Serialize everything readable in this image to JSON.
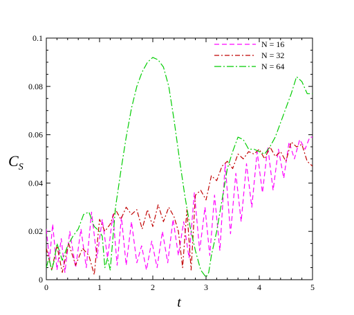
{
  "chart_data": {
    "type": "line",
    "xlabel": "t",
    "ylabel_main": "C",
    "ylabel_sub": "S",
    "xlim": [
      0,
      5
    ],
    "ylim": [
      0,
      0.1
    ],
    "xticks": [
      "0",
      "1",
      "2",
      "3",
      "4",
      "5"
    ],
    "yticks": [
      "0",
      "0.02",
      "0.04",
      "0.06",
      "0.08",
      "0.1"
    ],
    "grid": false,
    "legend_position": "top-right",
    "series": [
      {
        "name": "N = 16",
        "color": "#ff00ff",
        "dash": "7,4",
        "x": [
          0.0,
          0.06,
          0.12,
          0.2,
          0.28,
          0.35,
          0.44,
          0.55,
          0.65,
          0.75,
          0.85,
          0.95,
          1.05,
          1.15,
          1.25,
          1.33,
          1.41,
          1.5,
          1.6,
          1.7,
          1.79,
          1.88,
          1.98,
          2.08,
          2.18,
          2.28,
          2.38,
          2.48,
          2.58,
          2.68,
          2.78,
          2.88,
          2.98,
          3.07,
          3.16,
          3.26,
          3.36,
          3.46,
          3.56,
          3.66,
          3.76,
          3.86,
          3.96,
          4.06,
          4.16,
          4.26,
          4.36,
          4.46,
          4.56,
          4.66,
          4.76,
          4.86,
          4.95,
          5.0
        ],
        "y": [
          0.021,
          0.008,
          0.023,
          0.004,
          0.017,
          0.003,
          0.02,
          0.005,
          0.021,
          0.005,
          0.028,
          0.009,
          0.025,
          0.009,
          0.027,
          0.006,
          0.026,
          0.006,
          0.024,
          0.007,
          0.014,
          0.004,
          0.016,
          0.005,
          0.02,
          0.007,
          0.025,
          0.01,
          0.024,
          0.009,
          0.036,
          0.012,
          0.03,
          0.01,
          0.035,
          0.012,
          0.048,
          0.019,
          0.044,
          0.024,
          0.048,
          0.03,
          0.053,
          0.036,
          0.055,
          0.037,
          0.054,
          0.042,
          0.057,
          0.05,
          0.058,
          0.054,
          0.059,
          0.059
        ]
      },
      {
        "name": "N = 32",
        "color": "#c00000",
        "dash": "7,3,2,3",
        "x": [
          0.0,
          0.1,
          0.2,
          0.3,
          0.42,
          0.55,
          0.68,
          0.8,
          0.9,
          1.0,
          1.1,
          1.2,
          1.3,
          1.4,
          1.5,
          1.6,
          1.7,
          1.8,
          1.9,
          2.0,
          2.1,
          2.2,
          2.3,
          2.4,
          2.48,
          2.56,
          2.64,
          2.72,
          2.8,
          2.9,
          3.0,
          3.1,
          3.2,
          3.3,
          3.4,
          3.5,
          3.6,
          3.7,
          3.8,
          3.9,
          4.0,
          4.1,
          4.2,
          4.3,
          4.4,
          4.5,
          4.6,
          4.7,
          4.8,
          4.9,
          5.0
        ],
        "y": [
          0.013,
          0.004,
          0.014,
          0.003,
          0.015,
          0.006,
          0.013,
          0.01,
          0.002,
          0.025,
          0.02,
          0.023,
          0.029,
          0.025,
          0.03,
          0.027,
          0.029,
          0.021,
          0.029,
          0.022,
          0.031,
          0.024,
          0.03,
          0.026,
          0.02,
          0.005,
          0.029,
          0.004,
          0.035,
          0.037,
          0.033,
          0.043,
          0.041,
          0.047,
          0.049,
          0.046,
          0.052,
          0.05,
          0.053,
          0.052,
          0.054,
          0.05,
          0.055,
          0.051,
          0.053,
          0.049,
          0.057,
          0.055,
          0.056,
          0.049,
          0.047
        ]
      },
      {
        "name": "N = 64",
        "color": "#00cc00",
        "dash": "10,3,2,3",
        "x": [
          0.0,
          0.05,
          0.1,
          0.15,
          0.2,
          0.3,
          0.4,
          0.5,
          0.6,
          0.7,
          0.8,
          0.9,
          1.0,
          1.05,
          1.1,
          1.15,
          1.2,
          1.3,
          1.4,
          1.5,
          1.6,
          1.7,
          1.8,
          1.9,
          2.0,
          2.1,
          2.2,
          2.3,
          2.4,
          2.5,
          2.6,
          2.7,
          2.8,
          2.9,
          3.0,
          3.05,
          3.1,
          3.2,
          3.3,
          3.4,
          3.5,
          3.6,
          3.7,
          3.8,
          3.9,
          4.0,
          4.1,
          4.2,
          4.3,
          4.4,
          4.5,
          4.6,
          4.7,
          4.8,
          4.9,
          5.0
        ],
        "y": [
          0.005,
          0.009,
          0.004,
          0.008,
          0.015,
          0.008,
          0.014,
          0.018,
          0.021,
          0.027,
          0.028,
          0.022,
          0.02,
          0.018,
          0.005,
          0.009,
          0.004,
          0.03,
          0.045,
          0.059,
          0.071,
          0.08,
          0.086,
          0.09,
          0.092,
          0.091,
          0.088,
          0.08,
          0.066,
          0.05,
          0.035,
          0.022,
          0.012,
          0.004,
          0.001,
          0.003,
          0.01,
          0.02,
          0.033,
          0.046,
          0.053,
          0.059,
          0.058,
          0.054,
          0.054,
          0.053,
          0.052,
          0.055,
          0.059,
          0.065,
          0.071,
          0.077,
          0.084,
          0.082,
          0.077,
          0.077
        ]
      }
    ]
  }
}
